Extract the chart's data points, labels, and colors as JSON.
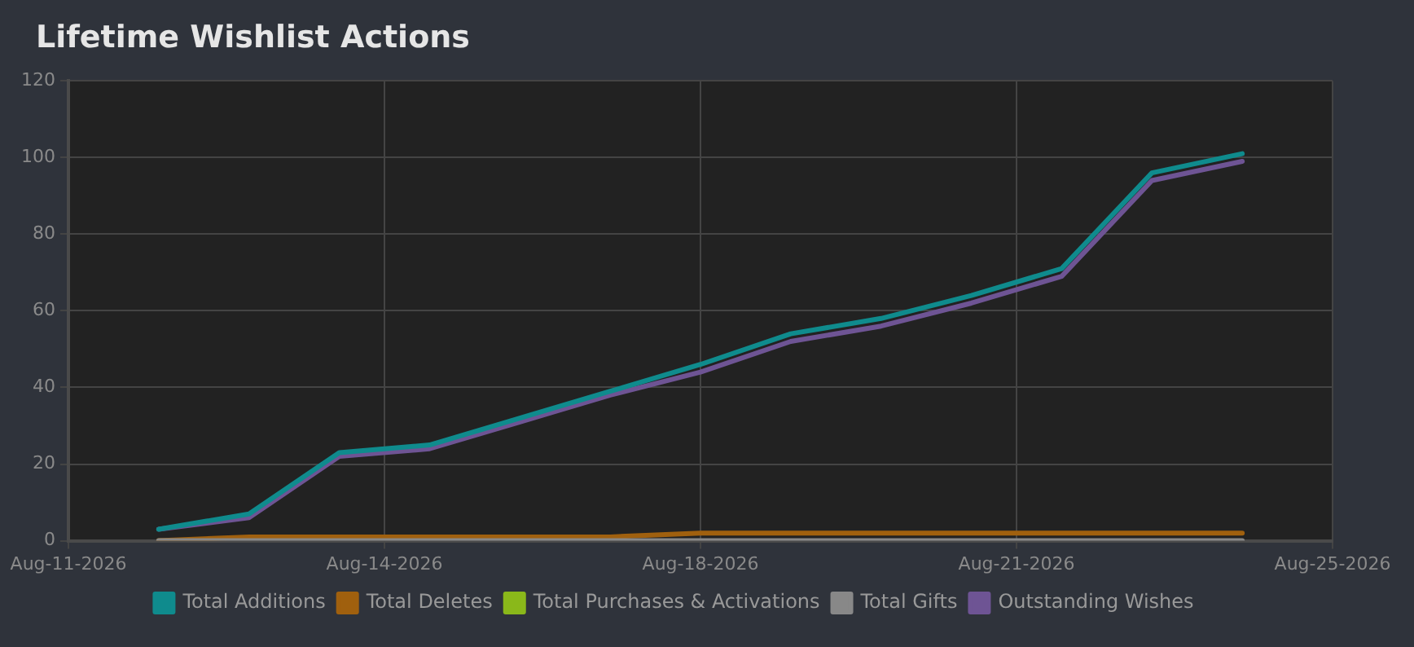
{
  "chart_data": {
    "type": "line",
    "title": "Lifetime Wishlist Actions",
    "x": [
      "2026-08-12",
      "2026-08-13",
      "2026-08-14",
      "2026-08-15",
      "2026-08-16",
      "2026-08-17",
      "2026-08-18",
      "2026-08-19",
      "2026-08-20",
      "2026-08-21",
      "2026-08-22",
      "2026-08-23",
      "2026-08-24"
    ],
    "series": [
      {
        "name": "Total Additions",
        "color": "#0f8b8d",
        "values": [
          3,
          7,
          23,
          25,
          32,
          39,
          46,
          54,
          58,
          64,
          71,
          96,
          101
        ]
      },
      {
        "name": "Total Deletes",
        "color": "#a0600e",
        "values": [
          0,
          1,
          1,
          1,
          1,
          1,
          2,
          2,
          2,
          2,
          2,
          2,
          2
        ]
      },
      {
        "name": "Total Purchases & Activations",
        "color": "#8ab81a",
        "values": [
          null,
          null,
          null,
          null,
          null,
          null,
          null,
          null,
          null,
          null,
          null,
          null,
          null
        ]
      },
      {
        "name": "Total Gifts",
        "color": "#888888",
        "values": [
          0,
          0,
          0,
          0,
          0,
          0,
          0,
          0,
          0,
          0,
          0,
          0,
          0
        ]
      },
      {
        "name": "Outstanding Wishes",
        "color": "#6e5494",
        "values": [
          3,
          6,
          22,
          24,
          31,
          38,
          44,
          52,
          56,
          62,
          69,
          94,
          99
        ]
      }
    ],
    "xlim": [
      "2026-08-11",
      "2026-08-25"
    ],
    "xticks": [
      {
        "value": "2026-08-11",
        "label": "Aug-11-2026"
      },
      {
        "value": "2026-08-14T12:00",
        "label": "Aug-14-2026"
      },
      {
        "value": "2026-08-18",
        "label": "Aug-18-2026"
      },
      {
        "value": "2026-08-21T12:00",
        "label": "Aug-21-2026"
      },
      {
        "value": "2026-08-25",
        "label": "Aug-25-2026"
      }
    ],
    "ylim": [
      0,
      120
    ],
    "yticks": [
      0,
      20,
      40,
      60,
      80,
      100,
      120
    ],
    "grid": true,
    "legend": "bottom",
    "marker": "none",
    "line_style": "solid"
  }
}
